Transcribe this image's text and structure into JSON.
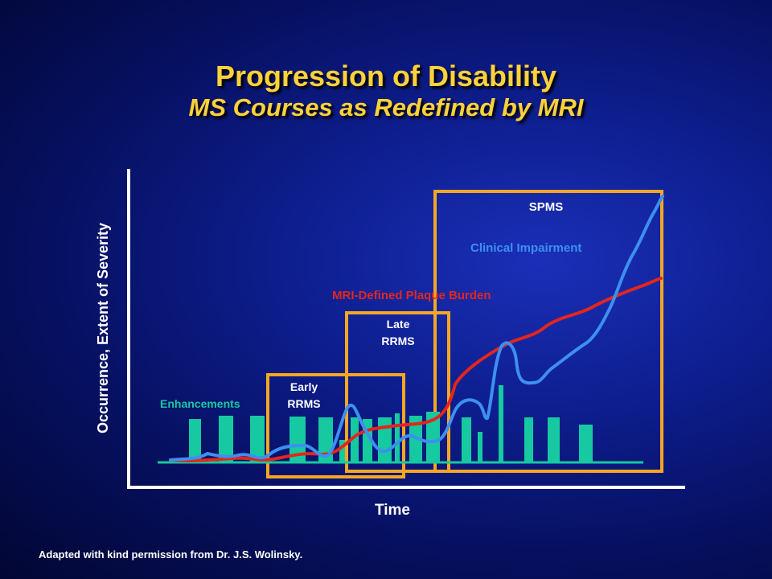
{
  "title": "Progression of Disability",
  "subtitle": "MS Courses as Redefined by MRI",
  "footnote": "Adapted with kind permission from Dr. J.S. Wolinsky.",
  "colors": {
    "title": "#ffd23a",
    "axis": "#ffffff",
    "box": "#f5a623",
    "enhancement": "#16c9a0",
    "plaque_burden": "#e3261c",
    "clinical_impairment": "#3d8ff0",
    "label_white": "#ffffff"
  },
  "axes": {
    "x_label": "Time",
    "y_label": "Occurrence, Extent of Severity"
  },
  "stages": [
    {
      "id": "early",
      "lines": [
        "Early",
        "RRMS"
      ]
    },
    {
      "id": "late",
      "lines": [
        "Late",
        "RRMS"
      ]
    },
    {
      "id": "spms",
      "lines": [
        "SPMS"
      ]
    }
  ],
  "labels": {
    "enhancements": "Enhancements",
    "plaque_burden": "MRI-Defined Plaque Burden",
    "clinical_impairment": "Clinical Impairment"
  }
}
